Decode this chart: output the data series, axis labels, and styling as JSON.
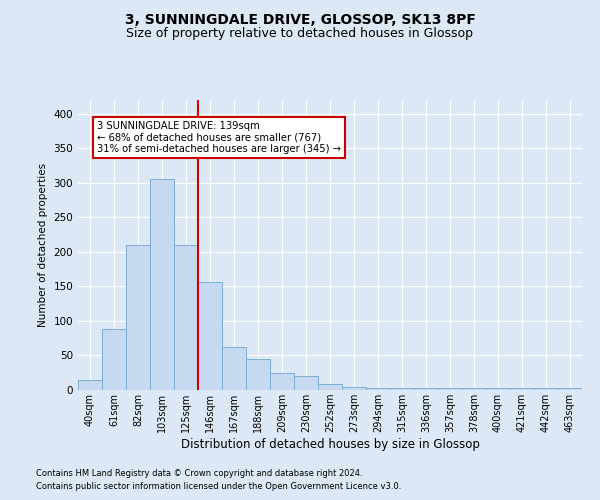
{
  "title1": "3, SUNNINGDALE DRIVE, GLOSSOP, SK13 8PF",
  "title2": "Size of property relative to detached houses in Glossop",
  "xlabel": "Distribution of detached houses by size in Glossop",
  "ylabel": "Number of detached properties",
  "footnote1": "Contains HM Land Registry data © Crown copyright and database right 2024.",
  "footnote2": "Contains public sector information licensed under the Open Government Licence v3.0.",
  "categories": [
    "40sqm",
    "61sqm",
    "82sqm",
    "103sqm",
    "125sqm",
    "146sqm",
    "167sqm",
    "188sqm",
    "209sqm",
    "230sqm",
    "252sqm",
    "273sqm",
    "294sqm",
    "315sqm",
    "336sqm",
    "357sqm",
    "378sqm",
    "400sqm",
    "421sqm",
    "442sqm",
    "463sqm"
  ],
  "values": [
    15,
    88,
    210,
    305,
    210,
    157,
    62,
    45,
    25,
    20,
    8,
    5,
    3,
    3,
    3,
    3,
    3,
    3,
    3,
    3,
    3
  ],
  "bar_color": "#c6d9f0",
  "bar_edge_color": "#7bafd4",
  "vline_x_idx": 4.5,
  "vline_color": "#cc0000",
  "annotation_text": "3 SUNNINGDALE DRIVE: 139sqm\n← 68% of detached houses are smaller (767)\n31% of semi-detached houses are larger (345) →",
  "annotation_box_color": "white",
  "annotation_box_edge": "#cc0000",
  "ylim": [
    0,
    420
  ],
  "yticks": [
    0,
    50,
    100,
    150,
    200,
    250,
    300,
    350,
    400
  ],
  "background_color": "#dce8f5",
  "grid_color": "white",
  "title1_fontsize": 10,
  "title2_fontsize": 9
}
